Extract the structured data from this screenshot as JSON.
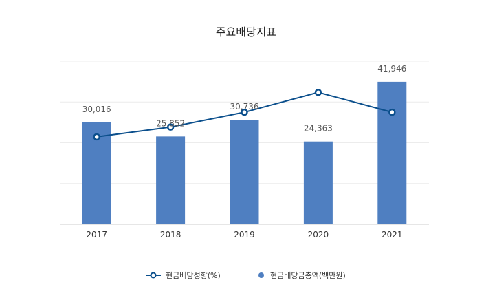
{
  "chart_data": {
    "type": "bar",
    "title": "주요배당지표",
    "categories": [
      "2017",
      "2018",
      "2019",
      "2020",
      "2021"
    ],
    "series": [
      {
        "name": "현금배당금총액(백만원)",
        "type": "bar",
        "axis": "left",
        "color": "#4f7fc1",
        "values": [
          30016,
          25852,
          30736,
          24363,
          41946
        ],
        "labels": [
          "30,016",
          "25,852",
          "30,736",
          "24,363",
          "41,946"
        ]
      },
      {
        "name": "현금배당성향(%)",
        "type": "line",
        "axis": "right",
        "color": "#0b4f8c",
        "values": [
          29.5,
          32.8,
          37.8,
          44.5,
          37.8
        ]
      }
    ],
    "ylim_left": [
      0,
      48000
    ],
    "ylim_right": [
      0,
      55
    ],
    "grid": true,
    "legend": "bottom-center"
  }
}
